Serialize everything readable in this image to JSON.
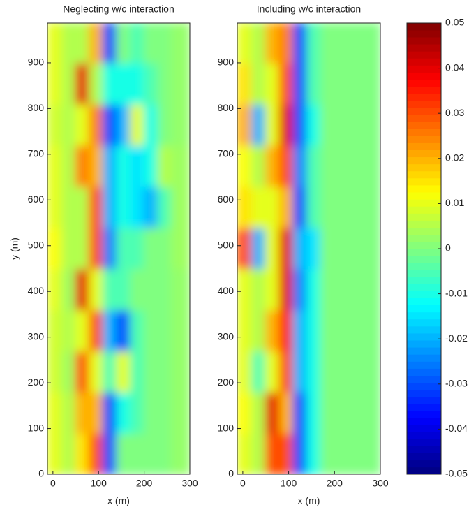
{
  "chart_data": [
    {
      "type": "heatmap",
      "title": "Neglecting w/c interaction",
      "xlabel": "x (m)",
      "ylabel": "y (m)",
      "xlim": [
        -12,
        300
      ],
      "ylim": [
        0,
        987
      ],
      "xticks": [
        0,
        100,
        200,
        300
      ],
      "yticks": [
        0,
        100,
        200,
        300,
        400,
        500,
        600,
        700,
        800,
        900
      ],
      "xbins": [
        -12,
        20,
        50,
        80,
        110,
        140,
        170,
        200,
        230,
        260,
        300
      ],
      "ybins": [
        0,
        90,
        180,
        270,
        360,
        450,
        540,
        630,
        720,
        810,
        900,
        987
      ],
      "z": [
        [
          0.01,
          0.005,
          0.015,
          0.03,
          -0.03,
          0,
          0,
          0,
          0,
          0.002
        ],
        [
          0.01,
          0.005,
          0.02,
          0.02,
          -0.03,
          -0.01,
          -0.005,
          0,
          0,
          0.002
        ],
        [
          0.008,
          0.003,
          0.03,
          0.01,
          -0.005,
          0.01,
          -0.005,
          0,
          0,
          0.002
        ],
        [
          0.008,
          0.005,
          0.01,
          0.03,
          -0.02,
          -0.03,
          -0.005,
          0,
          0,
          0.002
        ],
        [
          0.01,
          0.003,
          0.04,
          0.01,
          -0.005,
          -0.005,
          0,
          0,
          0,
          0.002
        ],
        [
          0.012,
          0.005,
          0.005,
          0.03,
          -0.025,
          -0.005,
          -0.005,
          0,
          0,
          0.003
        ],
        [
          0.01,
          0.005,
          0.005,
          0.03,
          -0.02,
          -0.01,
          -0.015,
          -0.02,
          -0.005,
          0.003
        ],
        [
          0.01,
          0.005,
          0.025,
          0.02,
          -0.02,
          -0.01,
          -0.015,
          -0.01,
          0.005,
          0.003
        ],
        [
          0.008,
          0.005,
          0.01,
          0.025,
          -0.03,
          -0.02,
          0.01,
          -0.01,
          0,
          0.002
        ],
        [
          0.01,
          0.005,
          0.04,
          0.005,
          -0.01,
          -0.01,
          -0.01,
          -0.005,
          0,
          0.002
        ],
        [
          0.01,
          0.005,
          0.005,
          0.02,
          -0.03,
          0,
          -0.005,
          0,
          0,
          0.002
        ]
      ]
    },
    {
      "type": "heatmap",
      "title": "Including w/c interaction",
      "xlabel": "x (m)",
      "xlim": [
        -12,
        300
      ],
      "ylim": [
        0,
        987
      ],
      "xticks": [
        0,
        100,
        200,
        300
      ],
      "yticks": [
        0,
        100,
        200,
        300,
        400,
        500,
        600,
        700,
        800,
        900
      ],
      "xbins": [
        -12,
        20,
        50,
        80,
        110,
        140,
        170,
        200,
        230,
        260,
        300
      ],
      "ybins": [
        0,
        90,
        180,
        270,
        360,
        450,
        540,
        630,
        720,
        810,
        900,
        987
      ],
      "z": [
        [
          0.01,
          0.005,
          0.03,
          0.03,
          -0.03,
          -0.01,
          0,
          0,
          0,
          0
        ],
        [
          0.012,
          0.005,
          0.04,
          0.02,
          -0.03,
          -0.01,
          0,
          0,
          0,
          0
        ],
        [
          0.01,
          -0.005,
          0.01,
          0.03,
          -0.02,
          -0.01,
          0,
          0,
          0,
          0
        ],
        [
          0.01,
          0.005,
          0.02,
          0.035,
          -0.02,
          -0.01,
          0,
          0,
          0,
          0
        ],
        [
          0.01,
          0.005,
          0.01,
          0.04,
          -0.025,
          -0.01,
          0,
          0,
          0,
          0
        ],
        [
          0.03,
          -0.02,
          0.01,
          0.04,
          -0.02,
          -0.015,
          0,
          0,
          0,
          0
        ],
        [
          0.015,
          0.01,
          0.01,
          0.02,
          -0.03,
          -0.005,
          0,
          0,
          0,
          0
        ],
        [
          0.012,
          0.005,
          0.02,
          0.03,
          -0.025,
          -0.005,
          0,
          0,
          0,
          0
        ],
        [
          0.02,
          -0.02,
          0.01,
          0.04,
          -0.03,
          -0.01,
          0,
          0,
          0,
          0
        ],
        [
          0.015,
          0.005,
          0.01,
          0.03,
          -0.03,
          -0.005,
          0,
          0,
          0,
          0
        ],
        [
          0.01,
          0.005,
          0.02,
          0.025,
          -0.03,
          -0.005,
          0,
          0,
          0,
          0
        ]
      ]
    },
    {
      "type": "colorbar",
      "colormap": "jet",
      "clim": [
        -0.05,
        0.05
      ],
      "ticks": [
        -0.05,
        -0.04,
        -0.03,
        -0.02,
        -0.01,
        0,
        0.01,
        0.02,
        0.03,
        0.04,
        0.05
      ]
    }
  ]
}
